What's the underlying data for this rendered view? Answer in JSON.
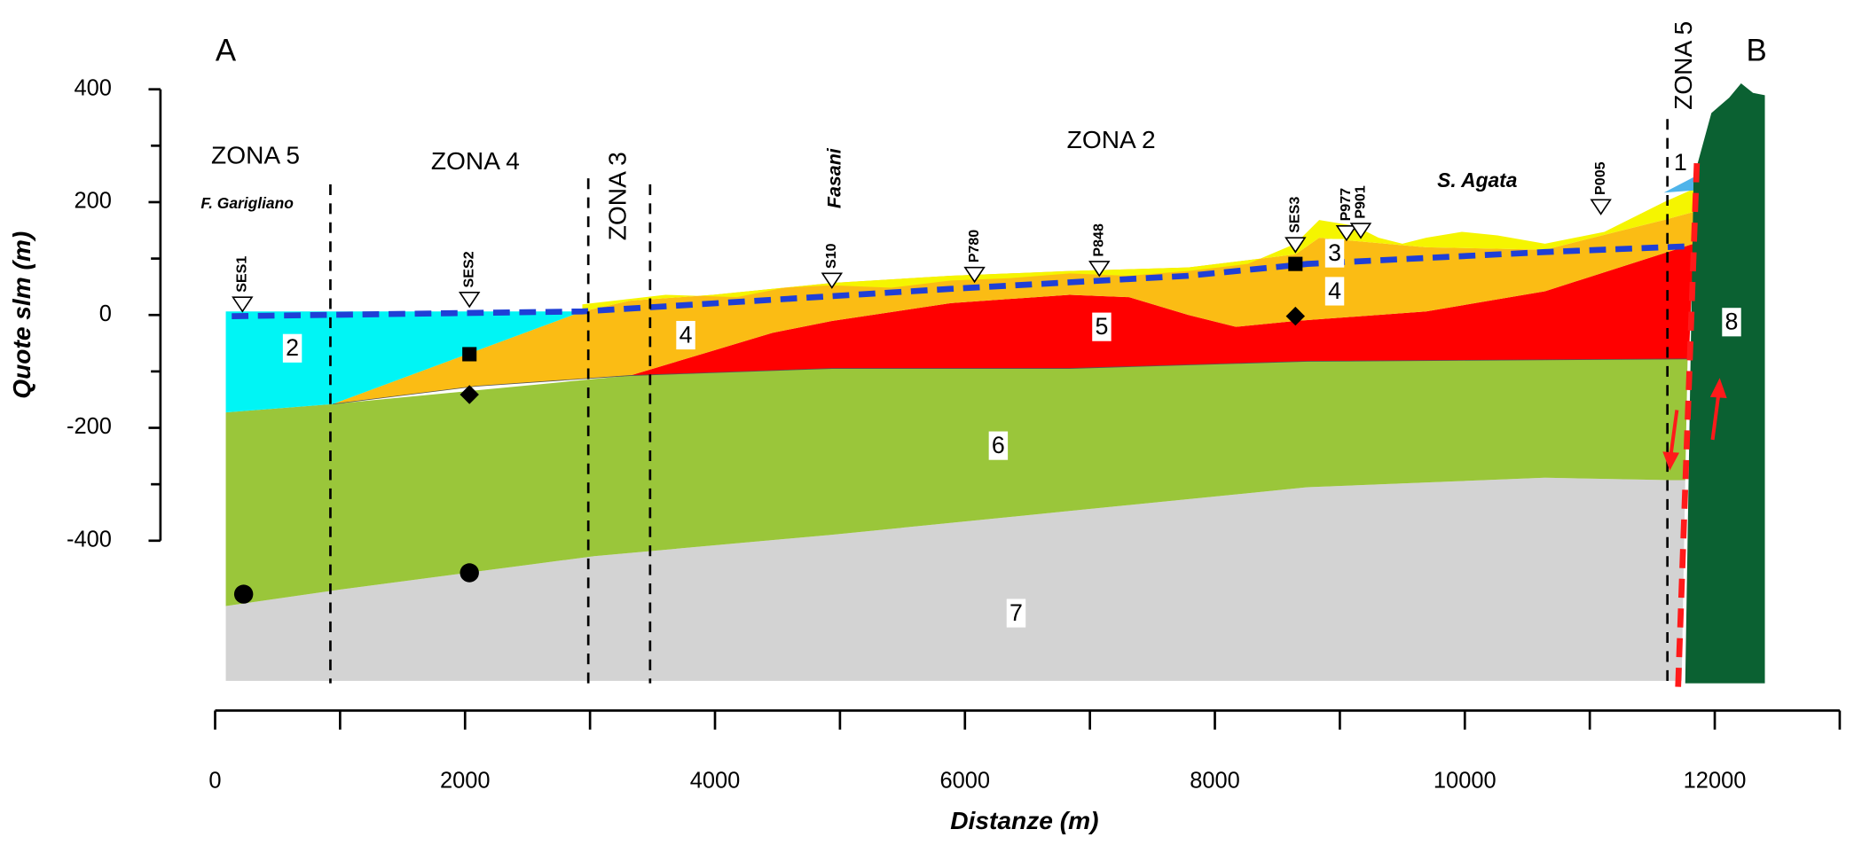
{
  "chart_data": {
    "type": "cross-section",
    "xlabel": "Distanze (m)",
    "ylabel": "Quote slm (m)",
    "xlim": [
      0,
      13000
    ],
    "ylim": [
      -400,
      400
    ],
    "xticks": [
      0,
      2000,
      4000,
      6000,
      8000,
      10000,
      12000
    ],
    "xminor": [
      1000,
      3000,
      5000,
      7000,
      9000,
      11000,
      13000
    ],
    "yticks": [
      -400,
      -200,
      0,
      200,
      400
    ],
    "yminor": [
      -300,
      -100,
      100,
      300
    ]
  },
  "section": {
    "ends": [
      "A",
      "B"
    ],
    "zones": [
      "ZONA 5",
      "ZONA 4",
      "ZONA 3",
      "ZONA 2",
      "ZONA 5"
    ],
    "places": [
      "F. Garigliano",
      "Fasani",
      "S. Agata"
    ],
    "units": [
      "1",
      "2",
      "3",
      "4",
      "4",
      "5",
      "6",
      "7",
      "8"
    ],
    "wells": [
      "SES1",
      "SES2",
      "S10",
      "P780",
      "P848",
      "SES3",
      "P977",
      "P901",
      "P005"
    ]
  }
}
